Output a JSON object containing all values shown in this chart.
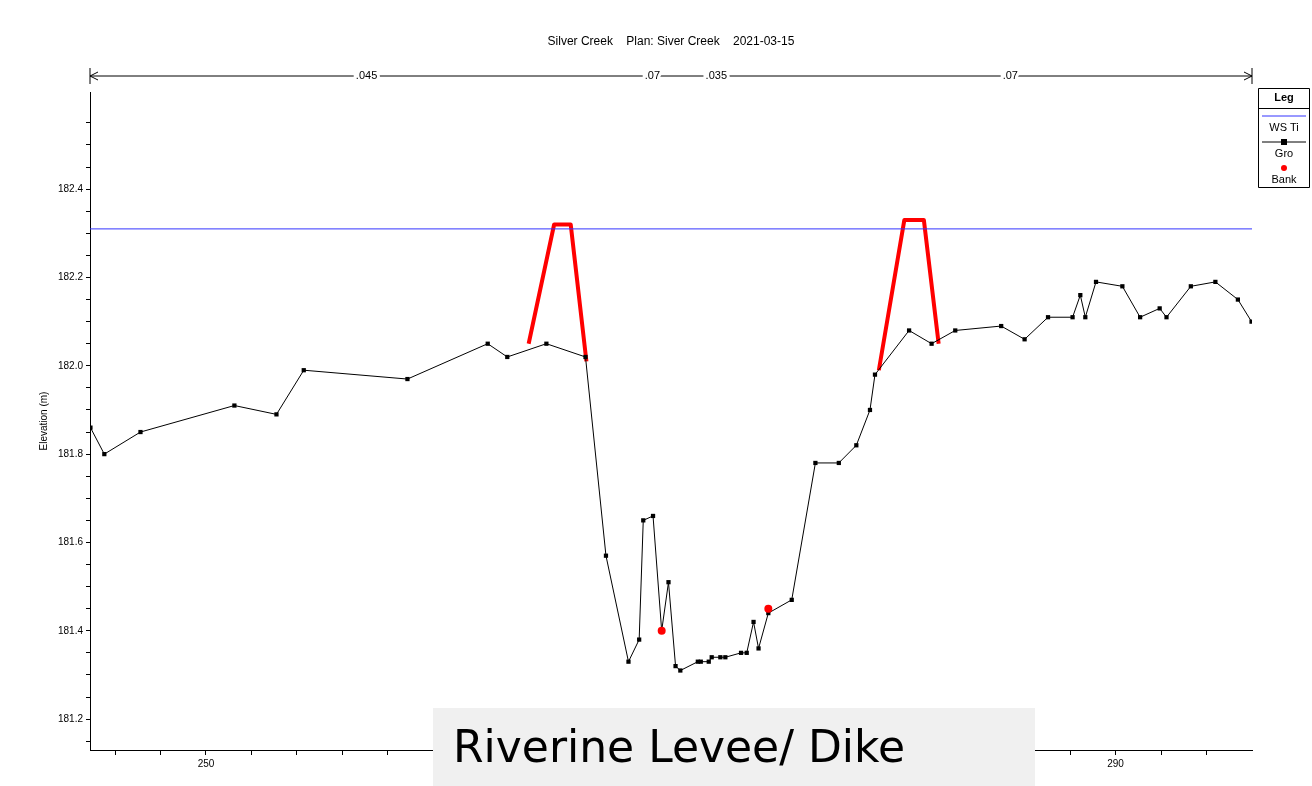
{
  "chart_data": {
    "type": "line",
    "title": "Silver Creek    Plan: Siver Creek    2021-03-15",
    "ylabel": "Elevation (m)",
    "legend_title": "Leg",
    "legend": "right",
    "xlim": [
      244.9,
      296.0
    ],
    "ylim": [
      181.13,
      182.62
    ],
    "xticks": [
      {
        "value": 246,
        "label": null
      },
      {
        "value": 248,
        "label": null
      },
      250,
      {
        "value": 252,
        "label": null
      },
      {
        "value": 254,
        "label": null
      },
      {
        "value": 256,
        "label": null
      },
      {
        "value": 258,
        "label": null
      },
      {
        "value": 260,
        "label": null
      },
      {
        "value": 262,
        "label": null
      },
      {
        "value": 264,
        "label": null
      },
      {
        "value": 266,
        "label": null
      },
      {
        "value": 268,
        "label": null
      },
      {
        "value": 270,
        "label": null
      },
      {
        "value": 272,
        "label": null
      },
      {
        "value": 274,
        "label": null
      },
      {
        "value": 276,
        "label": null
      },
      {
        "value": 278,
        "label": null
      },
      {
        "value": 280,
        "label": null
      },
      {
        "value": 282,
        "label": null
      },
      {
        "value": 284,
        "label": null
      },
      {
        "value": 286,
        "label": null
      },
      {
        "value": 288,
        "label": null
      },
      290,
      {
        "value": 292,
        "label": null
      },
      {
        "value": 294,
        "label": null
      }
    ],
    "yticks": [
      {
        "value": 181.15,
        "label": null
      },
      {
        "value": 181.2,
        "label": "181.2"
      },
      {
        "value": 181.25,
        "label": null
      },
      {
        "value": 181.3,
        "label": null
      },
      {
        "value": 181.35,
        "label": null
      },
      {
        "value": 181.4,
        "label": "181.4"
      },
      {
        "value": 181.45,
        "label": null
      },
      {
        "value": 181.5,
        "label": null
      },
      {
        "value": 181.55,
        "label": null
      },
      {
        "value": 181.6,
        "label": "181.6"
      },
      {
        "value": 181.65,
        "label": null
      },
      {
        "value": 181.7,
        "label": null
      },
      {
        "value": 181.75,
        "label": null
      },
      {
        "value": 181.8,
        "label": "181.8"
      },
      {
        "value": 181.85,
        "label": null
      },
      {
        "value": 181.9,
        "label": null
      },
      {
        "value": 181.95,
        "label": null
      },
      {
        "value": 182.0,
        "label": "182.0"
      },
      {
        "value": 182.05,
        "label": null
      },
      {
        "value": 182.1,
        "label": null
      },
      {
        "value": 182.15,
        "label": null
      },
      {
        "value": 182.2,
        "label": "182.2"
      },
      {
        "value": 182.25,
        "label": null
      },
      {
        "value": 182.3,
        "label": null
      },
      {
        "value": 182.35,
        "label": null
      },
      {
        "value": 182.4,
        "label": "182.4"
      },
      {
        "value": 182.45,
        "label": null
      },
      {
        "value": 182.5,
        "label": null
      },
      {
        "value": 182.55,
        "label": null
      }
    ],
    "series": [
      {
        "name": "WS Ti",
        "type": "line",
        "color": "#3333ff",
        "marker": "none",
        "x": [
          244.9,
          296.0
        ],
        "values": [
          182.31,
          182.31
        ]
      },
      {
        "name": "Gro",
        "type": "line",
        "color": "#000000",
        "marker": "square",
        "x": [
          244.92,
          245.53,
          247.12,
          251.25,
          253.1,
          254.3,
          258.86,
          262.39,
          263.25,
          264.97,
          266.69,
          267.59,
          268.58,
          269.05,
          269.23,
          269.66,
          270.04,
          270.34,
          270.65,
          270.86,
          271.63,
          271.76,
          272.11,
          272.24,
          272.62,
          272.84,
          273.53,
          273.78,
          274.08,
          274.3,
          274.73,
          275.76,
          276.8,
          277.83,
          278.6,
          279.2,
          279.42,
          280.92,
          281.91,
          282.95,
          284.97,
          286.0,
          287.03,
          288.11,
          288.45,
          288.67,
          289.14,
          290.3,
          291.08,
          291.94,
          292.24,
          293.31,
          294.39,
          295.38,
          295.98
        ],
        "values": [
          181.86,
          181.8,
          181.85,
          181.91,
          181.89,
          181.99,
          181.97,
          182.05,
          182.02,
          182.05,
          182.02,
          181.57,
          181.33,
          181.38,
          181.65,
          181.66,
          181.4,
          181.51,
          181.32,
          181.31,
          181.33,
          181.33,
          181.33,
          181.34,
          181.34,
          181.34,
          181.35,
          181.35,
          181.42,
          181.36,
          181.44,
          181.47,
          181.78,
          181.78,
          181.82,
          181.9,
          181.98,
          182.08,
          182.05,
          182.08,
          182.09,
          182.06,
          182.11,
          182.11,
          182.16,
          182.11,
          182.19,
          182.18,
          182.11,
          182.13,
          182.11,
          182.18,
          182.19,
          182.15,
          182.1
        ]
      },
      {
        "name": "Bank",
        "type": "scatter",
        "color": "#ff0000",
        "marker": "circle",
        "x": [
          270.04,
          274.73
        ],
        "values": [
          181.4,
          181.45
        ]
      },
      {
        "type": "line",
        "color": "#ff0000",
        "marker": "none",
        "x": [
          264.19,
          265.31,
          266.04,
          266.73,
          null,
          279.59,
          280.71,
          281.57,
          282.22
        ],
        "values": [
          182.05,
          182.32,
          182.32,
          182.01,
          null,
          181.99,
          182.33,
          182.33,
          182.05
        ]
      }
    ],
    "annotations": [
      ".045",
      ".07",
      ".035",
      ".07",
      "Riverine Levee/ Dike"
    ]
  }
}
